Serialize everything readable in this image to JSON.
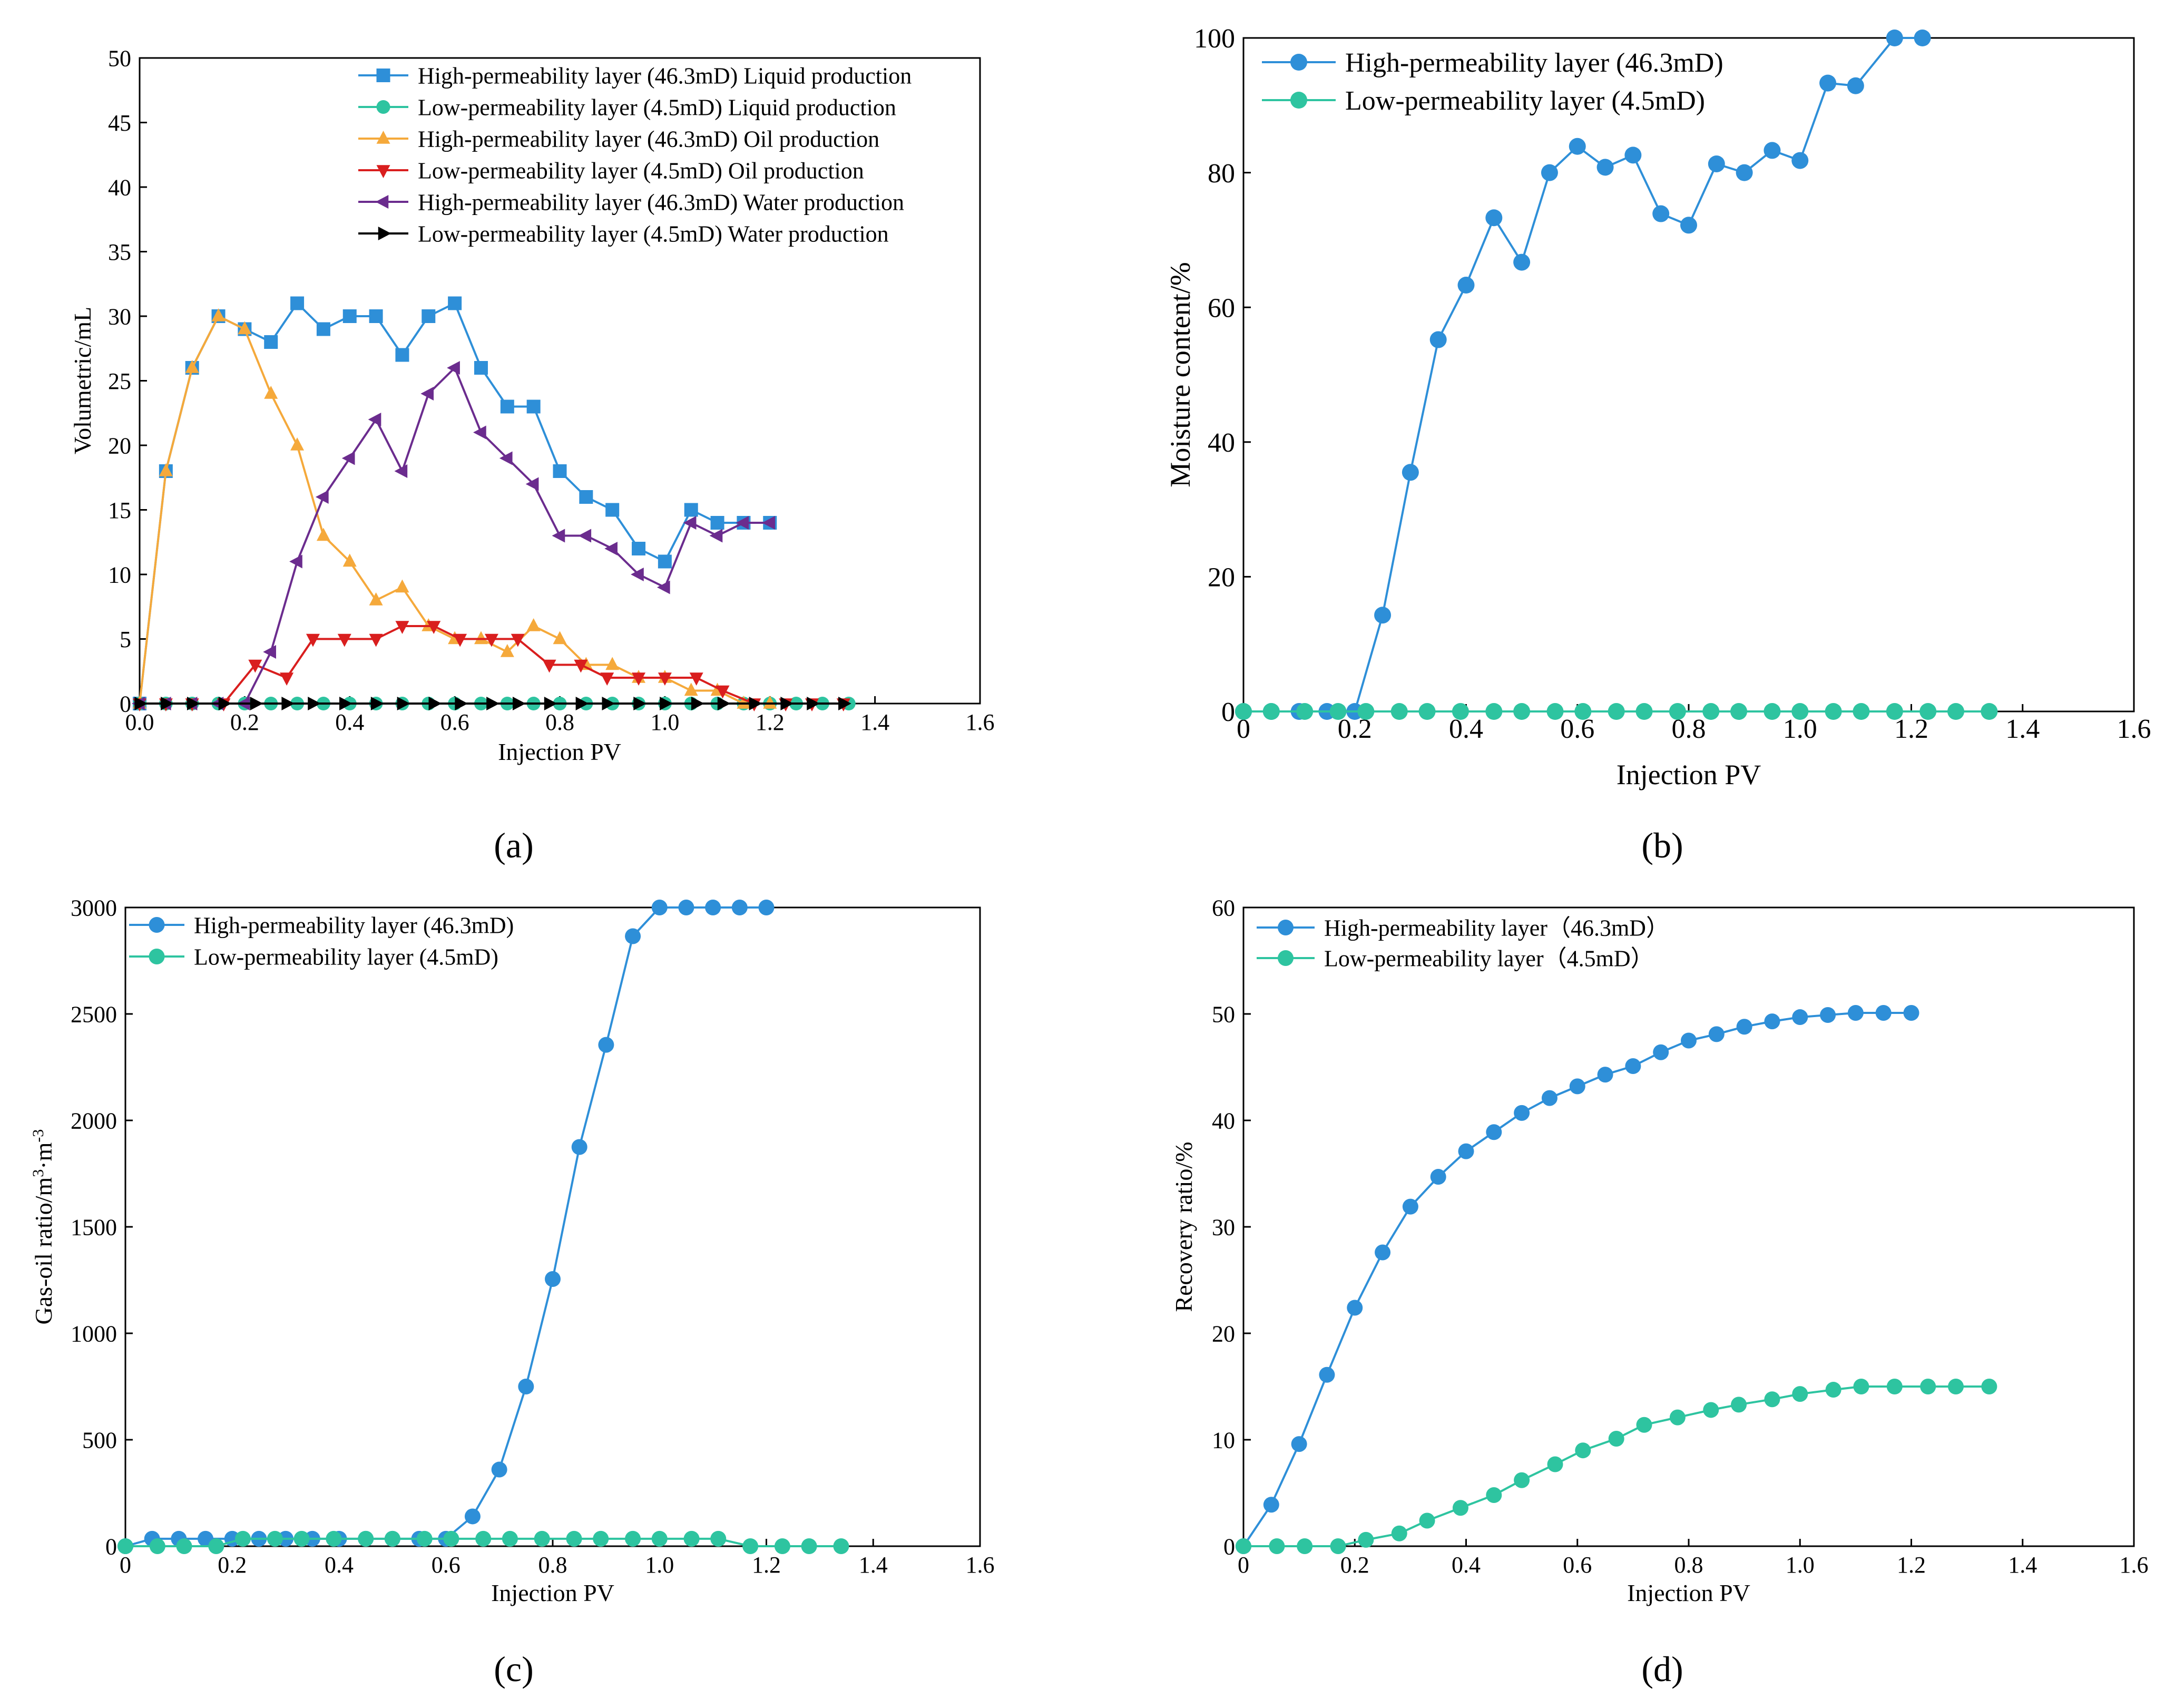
{
  "chart_data": [
    {
      "panel": "a",
      "type": "line",
      "title": "",
      "caption": "(a)",
      "xlabel": "Injection PV",
      "ylabel": "Volumetric/mL",
      "xlim": [
        0,
        1.6
      ],
      "ylim": [
        0,
        50
      ],
      "xticks": [
        0.0,
        0.2,
        0.4,
        0.6,
        0.8,
        1.0,
        1.2,
        1.4,
        1.6
      ],
      "xtick_labels": [
        "0.0",
        "0.2",
        "0.4",
        "0.6",
        "0.8",
        "1.0",
        "1.2",
        "1.4",
        "1.6"
      ],
      "yticks": [
        0,
        5,
        10,
        15,
        20,
        25,
        30,
        35,
        40,
        45,
        50
      ],
      "ytick_labels": [
        "0",
        "5",
        "10",
        "15",
        "20",
        "25",
        "30",
        "35",
        "40",
        "45",
        "50"
      ],
      "legend": "top-right",
      "series": [
        {
          "name": "High-permeability layer (46.3mD) Liquid production",
          "color": "#2E8FD8",
          "marker": "square",
          "x": [
            0,
            0.05,
            0.1,
            0.15,
            0.2,
            0.25,
            0.3,
            0.35,
            0.4,
            0.45,
            0.5,
            0.55,
            0.6,
            0.65,
            0.7,
            0.75,
            0.8,
            0.85,
            0.9,
            0.95,
            1.0,
            1.05,
            1.1,
            1.15,
            1.2
          ],
          "y": [
            0,
            18,
            26,
            30,
            29,
            28,
            31,
            29,
            30,
            30,
            27,
            30,
            31,
            26,
            23,
            23,
            18,
            16,
            15,
            12,
            11,
            15,
            14,
            14,
            14
          ]
        },
        {
          "name": "Low-permeability layer (4.5mD) Liquid production",
          "color": "#2EC4A0",
          "marker": "circle",
          "x": [
            0,
            0.05,
            0.1,
            0.15,
            0.2,
            0.25,
            0.3,
            0.35,
            0.4,
            0.45,
            0.5,
            0.55,
            0.6,
            0.65,
            0.7,
            0.75,
            0.8,
            0.85,
            0.9,
            0.95,
            1.0,
            1.05,
            1.1,
            1.15,
            1.2,
            1.25,
            1.3,
            1.35
          ],
          "y": [
            0,
            0,
            0,
            0,
            0,
            0,
            0,
            0,
            0,
            0,
            0,
            0,
            0,
            0,
            0,
            0,
            0,
            0,
            0,
            0,
            0,
            0,
            0,
            0,
            0,
            0,
            0,
            0
          ]
        },
        {
          "name": "High-permeability layer (46.3mD) Oil production",
          "color": "#F5A93B",
          "marker": "triangle-up",
          "x": [
            0,
            0.05,
            0.1,
            0.15,
            0.2,
            0.25,
            0.3,
            0.35,
            0.4,
            0.45,
            0.5,
            0.55,
            0.6,
            0.65,
            0.7,
            0.75,
            0.8,
            0.85,
            0.9,
            0.95,
            1.0,
            1.05,
            1.1,
            1.15,
            1.2
          ],
          "y": [
            0,
            18,
            26,
            30,
            29,
            24,
            20,
            13,
            11,
            8,
            9,
            6,
            5,
            5,
            4,
            6,
            5,
            3,
            3,
            2,
            2,
            1,
            1,
            0,
            0
          ]
        },
        {
          "name": "Low-permeability layer (4.5mD) Oil production",
          "color": "#D91E1E",
          "marker": "triangle-down",
          "x": [
            0,
            0.05,
            0.1,
            0.16,
            0.22,
            0.28,
            0.33,
            0.39,
            0.45,
            0.5,
            0.56,
            0.61,
            0.67,
            0.72,
            0.78,
            0.84,
            0.89,
            0.95,
            1.0,
            1.06,
            1.11,
            1.17,
            1.23,
            1.28,
            1.34
          ],
          "y": [
            0,
            0,
            0,
            0,
            3,
            2,
            5,
            5,
            5,
            6,
            6,
            5,
            5,
            5,
            3,
            3,
            2,
            2,
            2,
            2,
            1,
            0,
            0,
            0,
            0
          ]
        },
        {
          "name": "High-permeability layer (46.3mD) Water production",
          "color": "#6B2C8E",
          "marker": "triangle-left",
          "x": [
            0,
            0.05,
            0.1,
            0.15,
            0.2,
            0.25,
            0.3,
            0.35,
            0.4,
            0.45,
            0.5,
            0.55,
            0.6,
            0.65,
            0.7,
            0.75,
            0.8,
            0.85,
            0.9,
            0.95,
            1.0,
            1.05,
            1.1,
            1.15,
            1.2
          ],
          "y": [
            0,
            0,
            0,
            0,
            0,
            4,
            11,
            16,
            19,
            22,
            18,
            24,
            26,
            21,
            19,
            17,
            13,
            13,
            12,
            10,
            9,
            14,
            13,
            14,
            14
          ]
        },
        {
          "name": "Low-permeability layer (4.5mD) Water production",
          "color": "#000000",
          "marker": "triangle-right",
          "x": [
            0,
            0.05,
            0.1,
            0.16,
            0.22,
            0.28,
            0.33,
            0.39,
            0.45,
            0.5,
            0.56,
            0.61,
            0.67,
            0.72,
            0.78,
            0.84,
            0.89,
            0.95,
            1.0,
            1.06,
            1.11,
            1.17,
            1.23,
            1.28,
            1.34
          ],
          "y": [
            0,
            0,
            0,
            0,
            0,
            0,
            0,
            0,
            0,
            0,
            0,
            0,
            0,
            0,
            0,
            0,
            0,
            0,
            0,
            0,
            0,
            0,
            0,
            0,
            0
          ]
        }
      ]
    },
    {
      "panel": "b",
      "type": "line",
      "title": "",
      "caption": "(b)",
      "xlabel": "Injection PV",
      "ylabel": "Moisture content/%",
      "xlim": [
        0,
        1.6
      ],
      "ylim": [
        0,
        100
      ],
      "xticks": [
        0,
        0.2,
        0.4,
        0.6,
        0.8,
        1.0,
        1.2,
        1.4,
        1.6
      ],
      "xtick_labels": [
        "0",
        "0.2",
        "0.4",
        "0.6",
        "0.8",
        "1.0",
        "1.2",
        "1.4",
        "1.6"
      ],
      "yticks": [
        0,
        20,
        40,
        60,
        80,
        100
      ],
      "ytick_labels": [
        "0",
        "20",
        "40",
        "60",
        "80",
        "100"
      ],
      "legend": "top-left",
      "series": [
        {
          "name": "High-permeability layer (46.3mD)",
          "color": "#2E8FD8",
          "marker": "circle",
          "x": [
            0,
            0.05,
            0.1,
            0.15,
            0.2,
            0.25,
            0.3,
            0.35,
            0.4,
            0.45,
            0.5,
            0.55,
            0.6,
            0.65,
            0.7,
            0.75,
            0.8,
            0.85,
            0.9,
            0.95,
            1.0,
            1.05,
            1.1,
            1.17,
            1.22
          ],
          "y": [
            0,
            0,
            0,
            0,
            0,
            14.3,
            35.5,
            55.2,
            63.3,
            73.3,
            66.7,
            80,
            83.9,
            80.8,
            82.6,
            73.9,
            72.2,
            81.3,
            80,
            83.3,
            81.8,
            93.3,
            92.9,
            100,
            100
          ]
        },
        {
          "name": "Low-permeability layer (4.5mD)",
          "color": "#2EC4A0",
          "marker": "circle",
          "x": [
            0,
            0.05,
            0.11,
            0.17,
            0.22,
            0.28,
            0.33,
            0.39,
            0.45,
            0.5,
            0.56,
            0.61,
            0.67,
            0.72,
            0.78,
            0.84,
            0.89,
            0.95,
            1.0,
            1.06,
            1.11,
            1.17,
            1.23,
            1.28,
            1.34
          ],
          "y": [
            0,
            0,
            0,
            0,
            0,
            0,
            0,
            0,
            0,
            0,
            0,
            0,
            0,
            0,
            0,
            0,
            0,
            0,
            0,
            0,
            0,
            0,
            0,
            0,
            0
          ]
        }
      ]
    },
    {
      "panel": "c",
      "type": "line",
      "title": "",
      "caption": "(c)",
      "xlabel": "Injection PV",
      "ylabel": "Gas-oil ratio/m³·m⁻³",
      "ylabel_base": "Gas-oil ratio/m",
      "ylabel_sup1": "3",
      "ylabel_mid": "·m",
      "ylabel_sup2": "-3",
      "xlim": [
        0,
        1.6
      ],
      "ylim": [
        0,
        3000
      ],
      "xticks": [
        0,
        0.2,
        0.4,
        0.6,
        0.8,
        1.0,
        1.2,
        1.4,
        1.6
      ],
      "xtick_labels": [
        "0",
        "0.2",
        "0.4",
        "0.6",
        "0.8",
        "1.0",
        "1.2",
        "1.4",
        "1.6"
      ],
      "yticks": [
        0,
        500,
        1000,
        1500,
        2000,
        2500,
        3000
      ],
      "ytick_labels": [
        "0",
        "500",
        "1000",
        "1500",
        "2000",
        "2500",
        "3000"
      ],
      "legend": "top-left",
      "series": [
        {
          "name": "High-permeability layer (46.3mD)",
          "color": "#2E8FD8",
          "marker": "circle",
          "x": [
            0,
            0.05,
            0.1,
            0.15,
            0.2,
            0.25,
            0.3,
            0.35,
            0.4,
            0.45,
            0.5,
            0.55,
            0.6,
            0.65,
            0.7,
            0.75,
            0.8,
            0.85,
            0.9,
            0.95,
            1.0,
            1.05,
            1.1,
            1.15,
            1.2
          ],
          "y": [
            0,
            35,
            35,
            35,
            35,
            35,
            35,
            35,
            35,
            35,
            35,
            35,
            35,
            140,
            360,
            750,
            1255,
            1875,
            2355,
            2865,
            3000,
            3000,
            3000,
            3000,
            3000
          ]
        },
        {
          "name": "Low-permeability layer (4.5mD)",
          "color": "#2EC4A0",
          "marker": "circle",
          "x": [
            0,
            0.06,
            0.11,
            0.17,
            0.22,
            0.28,
            0.33,
            0.39,
            0.45,
            0.5,
            0.56,
            0.61,
            0.67,
            0.72,
            0.78,
            0.84,
            0.89,
            0.95,
            1.0,
            1.06,
            1.11,
            1.17,
            1.23,
            1.28,
            1.34
          ],
          "y": [
            0,
            0,
            0,
            0,
            35,
            35,
            35,
            35,
            35,
            35,
            35,
            35,
            35,
            35,
            35,
            35,
            35,
            35,
            35,
            35,
            35,
            0,
            0,
            0,
            0
          ]
        }
      ]
    },
    {
      "panel": "d",
      "type": "line",
      "title": "",
      "caption": "(d)",
      "xlabel": "Injection PV",
      "ylabel": "Recovery ratio/%",
      "xlim": [
        0,
        1.6
      ],
      "ylim": [
        0,
        60
      ],
      "xticks": [
        0,
        0.2,
        0.4,
        0.6,
        0.8,
        1.0,
        1.2,
        1.4,
        1.6
      ],
      "xtick_labels": [
        "0",
        "0.2",
        "0.4",
        "0.6",
        "0.8",
        "1.0",
        "1.2",
        "1.4",
        "1.6"
      ],
      "yticks": [
        0,
        10,
        20,
        30,
        40,
        50,
        60
      ],
      "ytick_labels": [
        "0",
        "10",
        "20",
        "30",
        "40",
        "50",
        "60"
      ],
      "legend": "top-left",
      "series": [
        {
          "name": "High-permeability layer（46.3mD）",
          "color": "#2E8FD8",
          "marker": "circle",
          "x": [
            0,
            0.05,
            0.1,
            0.15,
            0.2,
            0.25,
            0.3,
            0.35,
            0.4,
            0.45,
            0.5,
            0.55,
            0.6,
            0.65,
            0.7,
            0.75,
            0.8,
            0.85,
            0.9,
            0.95,
            1.0,
            1.05,
            1.1,
            1.15,
            1.2
          ],
          "y": [
            0,
            3.9,
            9.6,
            16.1,
            22.4,
            27.6,
            31.9,
            34.7,
            37.1,
            38.9,
            40.7,
            42.1,
            43.2,
            44.3,
            45.1,
            46.4,
            47.5,
            48.1,
            48.8,
            49.3,
            49.7,
            49.9,
            50.1,
            50.1,
            50.1
          ]
        },
        {
          "name": "Low-permeability layer（4.5mD）",
          "color": "#2EC4A0",
          "marker": "circle",
          "x": [
            0,
            0.06,
            0.11,
            0.17,
            0.22,
            0.28,
            0.33,
            0.39,
            0.45,
            0.5,
            0.56,
            0.61,
            0.67,
            0.72,
            0.78,
            0.84,
            0.89,
            0.95,
            1.0,
            1.06,
            1.11,
            1.17,
            1.23,
            1.28,
            1.34
          ],
          "y": [
            0,
            0,
            0,
            0,
            0.6,
            1.2,
            2.4,
            3.6,
            4.8,
            6.2,
            7.7,
            9.0,
            10.1,
            11.4,
            12.1,
            12.8,
            13.3,
            13.8,
            14.3,
            14.7,
            15.0,
            15.0,
            15.0,
            15.0,
            15.0
          ]
        }
      ]
    }
  ]
}
